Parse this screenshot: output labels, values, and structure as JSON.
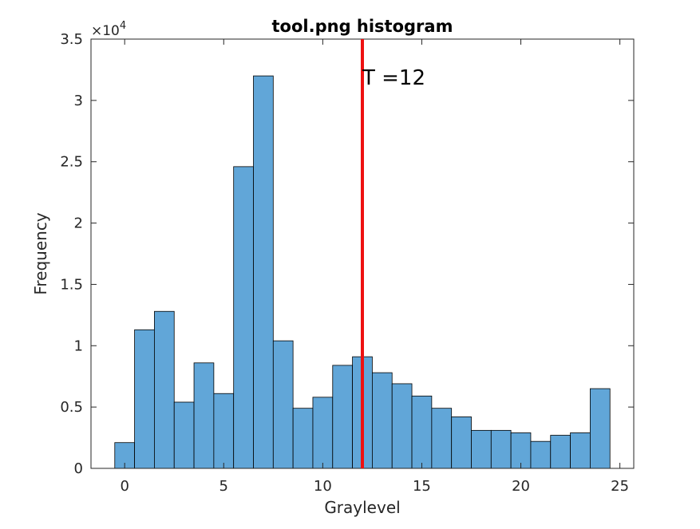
{
  "chart_data": {
    "type": "bar",
    "title": "tool.png histogram",
    "xlabel": "Graylevel",
    "ylabel": "Frequency",
    "y_exponent_label": "×10",
    "y_exponent": "4",
    "x": [
      0,
      1,
      2,
      3,
      4,
      5,
      6,
      7,
      8,
      9,
      10,
      11,
      12,
      13,
      14,
      15,
      16,
      17,
      18,
      19,
      20,
      21,
      22,
      23,
      24
    ],
    "values": [
      2100,
      11300,
      12800,
      5400,
      8600,
      6100,
      24600,
      32000,
      10400,
      4900,
      5800,
      8400,
      9100,
      7800,
      6900,
      5900,
      4900,
      4200,
      3100,
      3100,
      2900,
      2200,
      2700,
      2900,
      6500
    ],
    "bin_width": 1,
    "xlim": [
      -1.7,
      25.7
    ],
    "ylim": [
      0,
      35000
    ],
    "xticks": [
      0,
      5,
      10,
      15,
      20,
      25
    ],
    "xtick_labels": [
      "0",
      "5",
      "10",
      "15",
      "20",
      "25"
    ],
    "yticks": [
      0,
      5000,
      10000,
      15000,
      20000,
      25000,
      30000,
      35000
    ],
    "ytick_labels": [
      "0",
      "0.5",
      "1",
      "1.5",
      "2",
      "2.5",
      "3",
      "3.5"
    ],
    "grid": false,
    "bar_color": "#61a6d8",
    "bar_edge_color": "#000000",
    "threshold": {
      "x": 12,
      "label": "T =12",
      "color": "#ee1111"
    }
  }
}
